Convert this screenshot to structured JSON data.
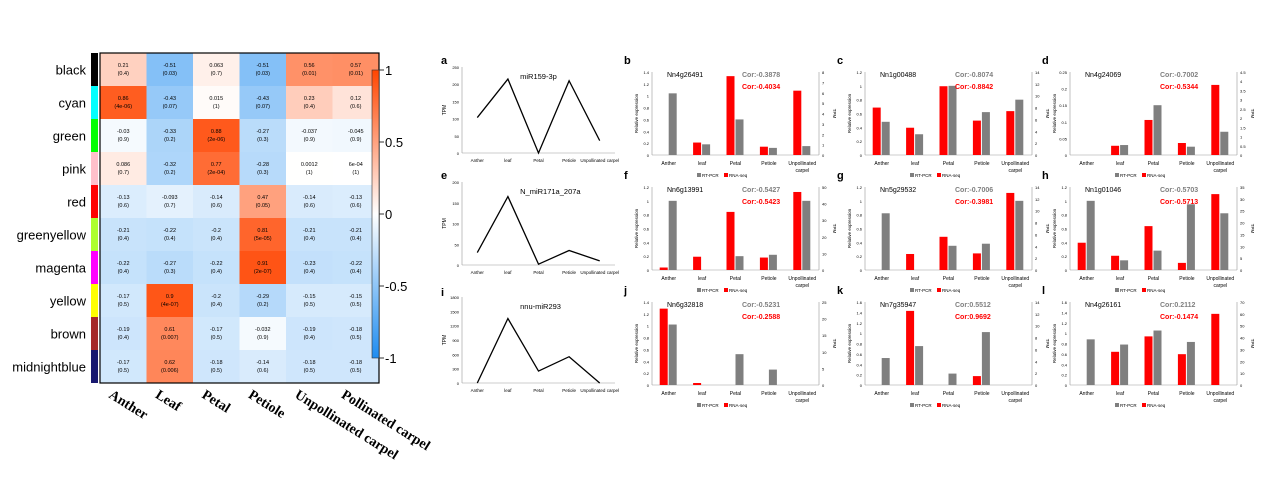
{
  "chart_data": [
    {
      "type": "heatmap",
      "rows": [
        "black",
        "cyan",
        "green",
        "pink",
        "red",
        "greenyellow",
        "magenta",
        "yellow",
        "brown",
        "midnightblue"
      ],
      "row_colors": [
        "#000000",
        "#00FFFF",
        "#00FF00",
        "#FFC0CB",
        "#FF0000",
        "#ADFF2F",
        "#FF00FF",
        "#FFFF00",
        "#A52A2A",
        "#191970"
      ],
      "columns": [
        "Anther",
        "Leaf",
        "Petal",
        "Petiole",
        "Unpollinated carpel",
        "Pollinated carpel"
      ],
      "values": [
        [
          0.21,
          -0.51,
          0.063,
          -0.51,
          0.56,
          0.57
        ],
        [
          0.86,
          -0.43,
          0.015,
          -0.43,
          0.23,
          0.12
        ],
        [
          -0.03,
          -0.33,
          0.88,
          -0.27,
          -0.037,
          -0.045
        ],
        [
          0.086,
          -0.32,
          0.77,
          -0.28,
          0.0012,
          0.0006
        ],
        [
          -0.13,
          -0.093,
          -0.14,
          0.47,
          -0.14,
          -0.13
        ],
        [
          -0.21,
          -0.22,
          -0.2,
          0.81,
          -0.21,
          -0.21
        ],
        [
          -0.22,
          -0.27,
          -0.22,
          0.91,
          -0.23,
          -0.22
        ],
        [
          -0.17,
          0.9,
          -0.2,
          -0.29,
          -0.15,
          -0.15
        ],
        [
          -0.19,
          0.61,
          -0.17,
          -0.032,
          -0.19,
          -0.18
        ],
        [
          -0.17,
          0.62,
          -0.18,
          -0.14,
          -0.18,
          -0.18
        ]
      ],
      "labels": [
        [
          "0.21\n(0.4)",
          "-0.51\n(0.03)",
          "0.063\n(0.7)",
          "-0.51\n(0.03)",
          "0.56\n(0.01)",
          "0.57\n(0.01)"
        ],
        [
          "0.86\n(4e-06)",
          "-0.43\n(0.07)",
          "0.015\n(1)",
          "-0.43\n(0.07)",
          "0.23\n(0.4)",
          "0.12\n(0.6)"
        ],
        [
          "-0.03\n(0.9)",
          "-0.33\n(0.2)",
          "0.88\n(2e-06)",
          "-0.27\n(0.3)",
          "-0.037\n(0.9)",
          "-0.045\n(0.9)"
        ],
        [
          "0.086\n(0.7)",
          "-0.32\n(0.2)",
          "0.77\n(2e-04)",
          "-0.28\n(0.3)",
          "0.0012\n(1)",
          "6e-04\n(1)"
        ],
        [
          "-0.13\n(0.6)",
          "-0.093\n(0.7)",
          "-0.14\n(0.6)",
          "0.47\n(0.05)",
          "-0.14\n(0.6)",
          "-0.13\n(0.6)"
        ],
        [
          "-0.21\n(0.4)",
          "-0.22\n(0.4)",
          "-0.2\n(0.4)",
          "0.81\n(5e-05)",
          "-0.21\n(0.4)",
          "-0.21\n(0.4)"
        ],
        [
          "-0.22\n(0.4)",
          "-0.27\n(0.3)",
          "-0.22\n(0.4)",
          "0.91\n(2e-07)",
          "-0.23\n(0.4)",
          "-0.22\n(0.4)"
        ],
        [
          "-0.17\n(0.5)",
          "0.9\n(4e-07)",
          "-0.2\n(0.4)",
          "-0.29\n(0.2)",
          "-0.15\n(0.5)",
          "-0.15\n(0.5)"
        ],
        [
          "-0.19\n(0.4)",
          "0.61\n(0.007)",
          "-0.17\n(0.5)",
          "-0.032\n(0.9)",
          "-0.19\n(0.4)",
          "-0.18\n(0.5)"
        ],
        [
          "-0.17\n(0.5)",
          "0.62\n(0.006)",
          "-0.18\n(0.5)",
          "-0.14\n(0.6)",
          "-0.18\n(0.5)",
          "-0.18\n(0.5)"
        ]
      ],
      "colorbar": {
        "range": [
          -1,
          1
        ],
        "ticks": [
          "1",
          "0.5",
          "0",
          "-0.5",
          "-1"
        ],
        "colors": {
          "low": "#1E8CF0",
          "mid": "#FFFFFF",
          "high": "#FF4500"
        }
      }
    },
    {
      "type": "line",
      "panel": "a",
      "title": "miR159-3p",
      "ylabel": "TPM",
      "categories": [
        "Anther",
        "leaf",
        "Petal",
        "Petiole",
        "Unpollinated carpel"
      ],
      "values": [
        103,
        215,
        0,
        210,
        36
      ],
      "ylim": [
        0,
        250
      ],
      "yticks": [
        "0",
        "50",
        "100",
        "150",
        "200",
        "250"
      ]
    },
    {
      "type": "line",
      "panel": "e",
      "title": "N_miR171a_207a",
      "ylabel": "TPM",
      "categories": [
        "Anther",
        "leaf",
        "Petal",
        "Petiole",
        "Unpollinated carpel"
      ],
      "values": [
        30,
        165,
        2,
        35,
        10
      ],
      "ylim": [
        0,
        200
      ],
      "yticks": [
        "0",
        "50",
        "100",
        "150",
        "200"
      ]
    },
    {
      "type": "line",
      "panel": "i",
      "title": "nnu-miR293",
      "ylabel": "TPM",
      "categories": [
        "Anther",
        "leaf",
        "Petal",
        "Petiole",
        "Unpollinated carpel"
      ],
      "values": [
        0,
        1350,
        250,
        550,
        0
      ],
      "ylim": [
        0,
        1800
      ],
      "yticks": [
        "0",
        "300",
        "600",
        "900",
        "1200",
        "1500",
        "1800"
      ]
    },
    {
      "type": "bar",
      "panel": "b",
      "title": "Nn4g26491",
      "cor_rtpcr": "Cor:-0.3878",
      "cor_rnaseq": "Cor:-0.4034",
      "ylabel": "Relative expression",
      "y2label": "TPM",
      "categories": [
        "Anther",
        "leaf",
        "Petal",
        "Petiole",
        "Unpollinated carpel"
      ],
      "ylim": [
        0,
        1.4
      ],
      "y2lim": [
        0,
        8
      ],
      "yticks": [
        "0",
        "0.2",
        "0.4",
        "0.6",
        "0.8",
        "1",
        "1.2",
        "1.4"
      ],
      "y2ticks": [
        "0",
        "1",
        "2",
        "3",
        "4",
        "5",
        "6",
        "7",
        "8"
      ],
      "series": [
        {
          "name": "RNA-seq",
          "axis": "right",
          "values": [
            0,
            1.2,
            7.6,
            0.8,
            6.2
          ]
        },
        {
          "name": "RT-PCR",
          "axis": "left",
          "values": [
            1.04,
            0.18,
            0.6,
            0.12,
            0.15
          ]
        }
      ]
    },
    {
      "type": "bar",
      "panel": "c",
      "title": "Nn1g00488",
      "cor_rtpcr": "Cor:-0.8074",
      "cor_rnaseq": "Cor:-0.8842",
      "ylabel": "Relative expression",
      "y2label": "TPM",
      "categories": [
        "Anther",
        "leaf",
        "Petal",
        "Petiole",
        "Unpollinated carpel"
      ],
      "ylim": [
        0,
        1.2
      ],
      "y2lim": [
        0,
        14
      ],
      "yticks": [
        "0",
        "0.2",
        "0.4",
        "0.6",
        "0.8",
        "1",
        "1.2"
      ],
      "y2ticks": [
        "0",
        "2",
        "4",
        "6",
        "8",
        "10",
        "12",
        "14"
      ],
      "series": [
        {
          "name": "RNA-seq",
          "axis": "right",
          "values": [
            8,
            4.6,
            11.6,
            5.8,
            7.4
          ]
        },
        {
          "name": "RT-PCR",
          "axis": "left",
          "values": [
            0.48,
            0.3,
            1.0,
            0.62,
            0.8
          ]
        }
      ]
    },
    {
      "type": "bar",
      "panel": "d",
      "title": "Nn4g24069",
      "cor_rtpcr": "Cor:-0.7002",
      "cor_rnaseq": "Cor:-0.5344",
      "ylabel": "Relative expression",
      "y2label": "TPM",
      "categories": [
        "Anther",
        "leaf",
        "Petal",
        "Petiole",
        "Unpollinated carpel"
      ],
      "ylim": [
        0,
        0.25
      ],
      "y2lim": [
        0,
        4.5
      ],
      "yticks": [
        "0",
        "0.05",
        "0.1",
        "0.15",
        "0.2",
        "0.25"
      ],
      "y2ticks": [
        "0",
        "0.5",
        "1",
        "1.5",
        "2",
        "2.5",
        "3",
        "3.5",
        "4",
        "4.5"
      ],
      "series": [
        {
          "name": "RNA-seq",
          "axis": "right",
          "values": [
            0,
            0.5,
            1.9,
            0.65,
            3.8
          ]
        },
        {
          "name": "RT-PCR",
          "axis": "left",
          "values": [
            0,
            0.03,
            0.15,
            0.025,
            0.07
          ]
        }
      ]
    },
    {
      "type": "bar",
      "panel": "f",
      "title": "Nn6g13991",
      "cor_rtpcr": "Cor:-0.5427",
      "cor_rnaseq": "Cor:-0.5423",
      "ylabel": "Relative expression",
      "y2label": "TPM",
      "categories": [
        "Anther",
        "leaf",
        "Petal",
        "Petiole",
        "Unpollinated carpel"
      ],
      "ylim": [
        0,
        1.2
      ],
      "y2lim": [
        0,
        50
      ],
      "yticks": [
        "0",
        "0.2",
        "0.4",
        "0.6",
        "0.8",
        "1",
        "1.2"
      ],
      "y2ticks": [
        "0",
        "10",
        "20",
        "30",
        "40",
        "50"
      ],
      "series": [
        {
          "name": "RNA-seq",
          "axis": "right",
          "values": [
            1.5,
            8,
            35,
            7.5,
            47
          ]
        },
        {
          "name": "RT-PCR",
          "axis": "left",
          "values": [
            1.0,
            0,
            0.2,
            0.22,
            1.0
          ]
        }
      ]
    },
    {
      "type": "bar",
      "panel": "g",
      "title": "Nn5g29532",
      "cor_rtpcr": "Cor:-0.7006",
      "cor_rnaseq": "Cor:-0.3981",
      "ylabel": "Relative expression",
      "y2label": "TPM",
      "categories": [
        "Anther",
        "leaf",
        "Petal",
        "Petiole",
        "Unpollinated carpel"
      ],
      "ylim": [
        0,
        1.2
      ],
      "y2lim": [
        0,
        14
      ],
      "yticks": [
        "0",
        "0.2",
        "0.4",
        "0.6",
        "0.8",
        "1",
        "1.2"
      ],
      "y2ticks": [
        "0",
        "2",
        "4",
        "6",
        "8",
        "10",
        "12",
        "14"
      ],
      "series": [
        {
          "name": "RNA-seq",
          "axis": "right",
          "values": [
            0,
            2.7,
            5.6,
            2.8,
            13
          ]
        },
        {
          "name": "RT-PCR",
          "axis": "left",
          "values": [
            0.82,
            0,
            0.35,
            0.38,
            1.0
          ]
        }
      ]
    },
    {
      "type": "bar",
      "panel": "h",
      "title": "Nn1g01046",
      "cor_rtpcr": "Cor:-0.5703",
      "cor_rnaseq": "Cor:-0.5713",
      "ylabel": "Relative expression",
      "y2label": "TPM",
      "categories": [
        "Anther",
        "leaf",
        "Petal",
        "Petiole",
        "Unpollinated carpel"
      ],
      "ylim": [
        0,
        1.2
      ],
      "y2lim": [
        0,
        35
      ],
      "yticks": [
        "0",
        "0.2",
        "0.4",
        "0.6",
        "0.8",
        "1",
        "1.2"
      ],
      "y2ticks": [
        "0",
        "5",
        "10",
        "15",
        "20",
        "25",
        "30",
        "35"
      ],
      "series": [
        {
          "name": "RNA-seq",
          "axis": "right",
          "values": [
            11.5,
            6,
            18.5,
            3,
            32
          ]
        },
        {
          "name": "RT-PCR",
          "axis": "left",
          "values": [
            1.0,
            0.14,
            0.28,
            0.95,
            0.82
          ]
        }
      ]
    },
    {
      "type": "bar",
      "panel": "j",
      "title": "Nn6g32818",
      "cor_rtpcr": "Cor:-0.5231",
      "cor_rnaseq": "Cor:-0.2588",
      "ylabel": "Relative expression",
      "y2label": "TPM",
      "categories": [
        "Anther",
        "leaf",
        "Petal",
        "Petiole",
        "Unpollinated carpel"
      ],
      "ylim": [
        0,
        1.4
      ],
      "y2lim": [
        0,
        25
      ],
      "yticks": [
        "0",
        "0.2",
        "0.4",
        "0.6",
        "0.8",
        "1",
        "1.2",
        "1.4"
      ],
      "y2ticks": [
        "0",
        "5",
        "10",
        "15",
        "20",
        "25"
      ],
      "series": [
        {
          "name": "RNA-seq",
          "axis": "right",
          "values": [
            23,
            0.6,
            0,
            0,
            0
          ]
        },
        {
          "name": "RT-PCR",
          "axis": "left",
          "values": [
            1.02,
            0,
            0.52,
            0.26,
            0
          ]
        }
      ]
    },
    {
      "type": "bar",
      "panel": "k",
      "title": "Nn7g35947",
      "cor_rtpcr": "Cor:0.5512",
      "cor_rnaseq": "Cor:0.9692",
      "ylabel": "Relative expression",
      "y2label": "TPM",
      "categories": [
        "Anther",
        "leaf",
        "Petal",
        "Petiole",
        "Unpollinated carpel"
      ],
      "ylim": [
        0,
        1.6
      ],
      "y2lim": [
        0,
        14
      ],
      "yticks": [
        "0",
        "0.2",
        "0.4",
        "0.6",
        "0.8",
        "1",
        "1.2",
        "1.4",
        "1.6"
      ],
      "y2ticks": [
        "0",
        "2",
        "4",
        "6",
        "8",
        "10",
        "12",
        "14"
      ],
      "series": [
        {
          "name": "RNA-seq",
          "axis": "right",
          "values": [
            0,
            12.5,
            0,
            1.5,
            0
          ]
        },
        {
          "name": "RT-PCR",
          "axis": "left",
          "values": [
            0.52,
            0.75,
            0.22,
            1.02,
            0
          ]
        }
      ]
    },
    {
      "type": "bar",
      "panel": "l",
      "title": "Nn4g26161",
      "cor_rtpcr": "Cor:0.2112",
      "cor_rnaseq": "Cor:-0.1474",
      "ylabel": "Relative expression",
      "y2label": "TPM",
      "categories": [
        "Anther",
        "leaf",
        "Petal",
        "Petiole",
        "Unpollinated carpel"
      ],
      "ylim": [
        0,
        1.6
      ],
      "y2lim": [
        0,
        70
      ],
      "yticks": [
        "0",
        "0.2",
        "0.4",
        "0.6",
        "0.8",
        "1",
        "1.2",
        "1.4",
        "1.6"
      ],
      "y2ticks": [
        "0",
        "10",
        "20",
        "30",
        "40",
        "50",
        "60",
        "70"
      ],
      "series": [
        {
          "name": "RNA-seq",
          "axis": "right",
          "values": [
            0,
            28,
            41,
            26,
            60
          ]
        },
        {
          "name": "RT-PCR",
          "axis": "left",
          "values": [
            0.88,
            0.78,
            1.05,
            0.83,
            0
          ]
        }
      ]
    }
  ],
  "legend": {
    "rtpcr": "RT-PCR",
    "rnaseq": "RNA-seq"
  },
  "colors": {
    "rtpcr": "#7F7F7F",
    "rnaseq": "#FF0000",
    "cor_rtpcr": "#808080",
    "cor_rnaseq": "#FF0000"
  }
}
